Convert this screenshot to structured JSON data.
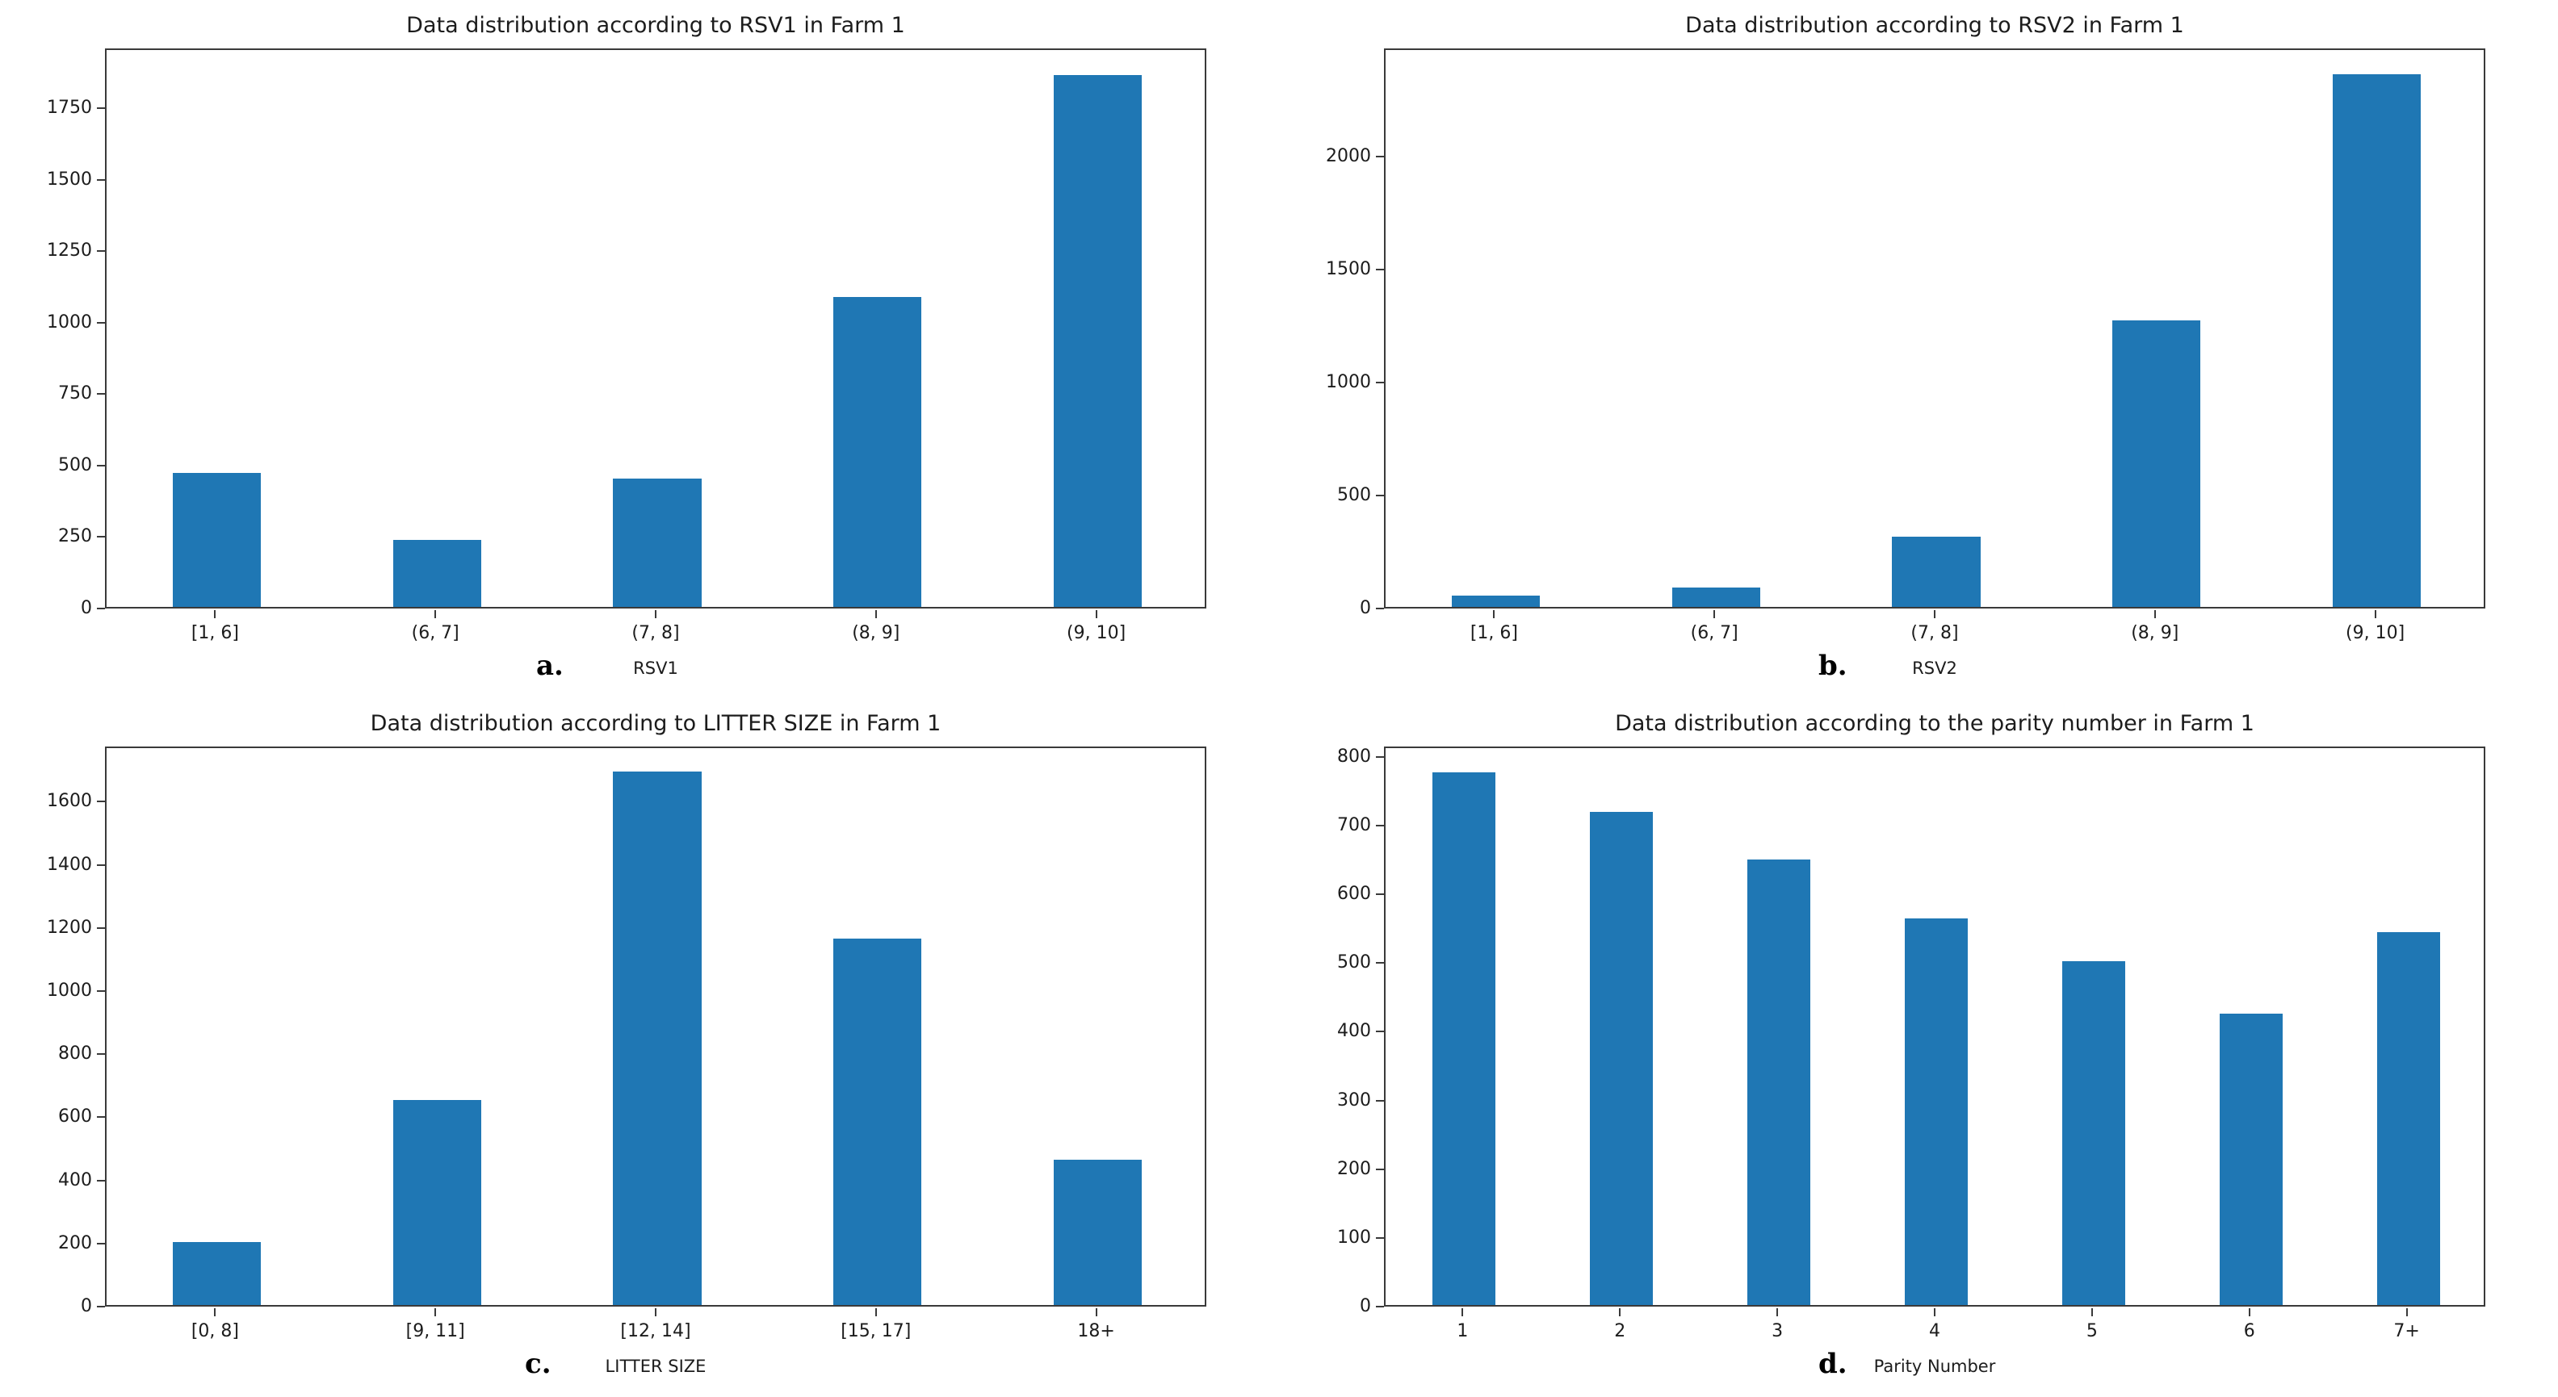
{
  "page": {
    "background": "#ffffff",
    "description_note": "2x2 grid of bar charts"
  },
  "style": {
    "bar_color": "#1f77b4",
    "spine_color": "#3a3a3a",
    "text_color": "#1c1c1c"
  },
  "chart_data": [
    {
      "type": "bar",
      "letter": "a.",
      "title": "Data distribution according to RSV1 in Farm 1",
      "xlabel": "RSV1",
      "ylabel": "",
      "categories": [
        "[1, 6]",
        "(6, 7]",
        "(7, 8]",
        "(8, 9]",
        "(9, 10]"
      ],
      "values": [
        470,
        235,
        450,
        1085,
        1860
      ],
      "yticks": [
        0,
        250,
        500,
        750,
        1000,
        1250,
        1500,
        1750
      ],
      "ylim": [
        0,
        1960
      ],
      "grid": false,
      "legend": null
    },
    {
      "type": "bar",
      "letter": "b.",
      "title": "Data distribution according to RSV2 in Farm 1",
      "xlabel": "RSV2",
      "ylabel": "",
      "categories": [
        "[1, 6]",
        "(6, 7]",
        "(7, 8]",
        "(8, 9]",
        "(9, 10]"
      ],
      "values": [
        50,
        85,
        310,
        1270,
        2360
      ],
      "yticks": [
        0,
        500,
        1000,
        1500,
        2000
      ],
      "ylim": [
        0,
        2480
      ],
      "grid": false,
      "legend": null
    },
    {
      "type": "bar",
      "letter": "c.",
      "title": "Data distribution according to LITTER SIZE in Farm 1",
      "xlabel": "LITTER SIZE",
      "ylabel": "",
      "categories": [
        "[0, 8]",
        "[9, 11]",
        "[12, 14]",
        "[15, 17]",
        "18+"
      ],
      "values": [
        200,
        650,
        1690,
        1160,
        460
      ],
      "yticks": [
        0,
        200,
        400,
        600,
        800,
        1000,
        1200,
        1400,
        1600
      ],
      "ylim": [
        0,
        1775
      ],
      "grid": false,
      "legend": null
    },
    {
      "type": "bar",
      "letter": "d.",
      "title": "Data distribution according to the parity number in Farm 1",
      "xlabel": "Parity Number",
      "ylabel": "",
      "categories": [
        "1",
        "2",
        "3",
        "4",
        "5",
        "6",
        "7+"
      ],
      "values": [
        775,
        718,
        648,
        563,
        500,
        424,
        542
      ],
      "yticks": [
        0,
        100,
        200,
        300,
        400,
        500,
        600,
        700,
        800
      ],
      "ylim": [
        0,
        815
      ],
      "grid": false,
      "legend": null
    }
  ]
}
